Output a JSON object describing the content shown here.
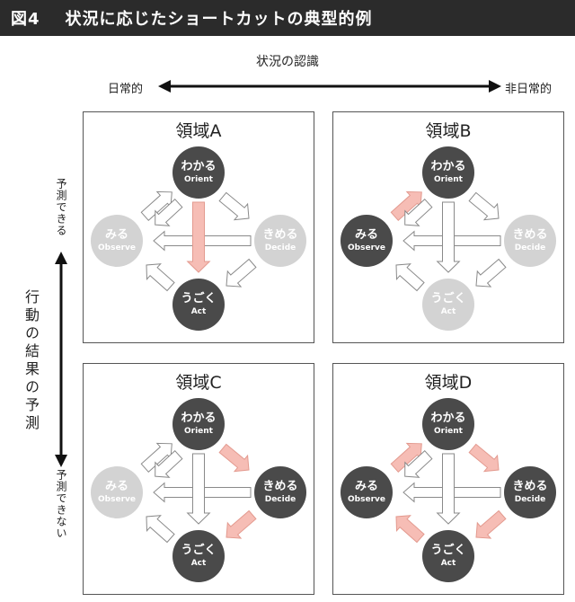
{
  "header": {
    "figure": "図4",
    "title": "状況に応じたショートカットの典型的例"
  },
  "axes": {
    "horizontal": {
      "title": "状況の認識",
      "left": "日常的",
      "right": "非日常的"
    },
    "vertical": {
      "title": "行動の結果の予測",
      "top": "予測できる",
      "bottom": "予測できない"
    }
  },
  "colors": {
    "dark_node": "#4a4a4a",
    "light_node": "#d3d3d3",
    "highlight": "#f6bdb5",
    "header_bg": "#2b2b2b"
  },
  "nodes": {
    "orient": {
      "jp": "わかる",
      "en": "Orient"
    },
    "observe": {
      "jp": "みる",
      "en": "Observe"
    },
    "decide": {
      "jp": "きめる",
      "en": "Decide"
    },
    "act": {
      "jp": "うごく",
      "en": "Act"
    }
  },
  "quadrants": [
    {
      "title": "領域A",
      "dark": [
        "orient",
        "act"
      ],
      "highlight": [
        "orient_act"
      ]
    },
    {
      "title": "領域B",
      "dark": [
        "orient",
        "observe"
      ],
      "highlight": [
        "observe_orient"
      ]
    },
    {
      "title": "領域C",
      "dark": [
        "orient",
        "decide",
        "act"
      ],
      "highlight": [
        "orient_decide",
        "decide_act"
      ]
    },
    {
      "title": "領域D",
      "dark": [
        "orient",
        "observe",
        "decide",
        "act"
      ],
      "highlight": [
        "observe_orient",
        "orient_decide",
        "decide_act",
        "act_observe"
      ]
    }
  ]
}
